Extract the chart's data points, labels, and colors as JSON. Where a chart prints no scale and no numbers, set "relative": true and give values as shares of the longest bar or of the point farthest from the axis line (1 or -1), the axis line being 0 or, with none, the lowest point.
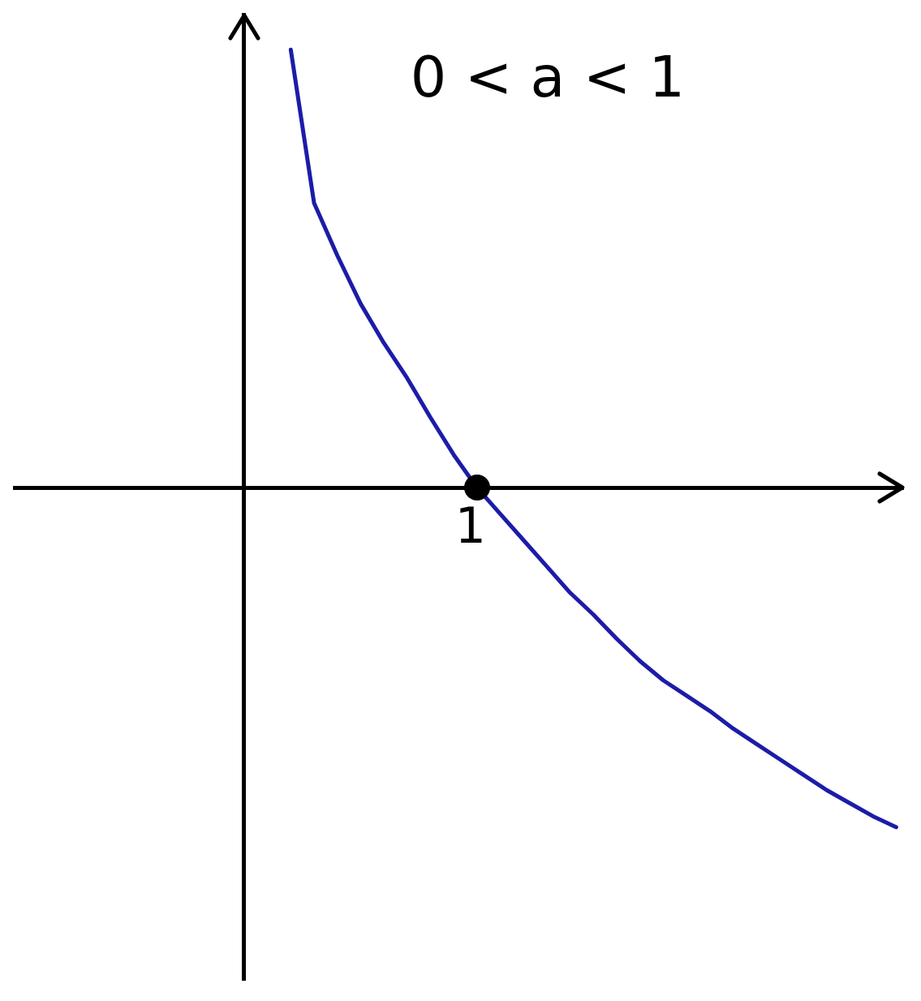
{
  "chart_data": {
    "type": "line",
    "relative": true,
    "grid": false,
    "annotations": [
      "0 < a < 1",
      "1"
    ],
    "categories": [
      null,
      null,
      null,
      null,
      null,
      null,
      null,
      null,
      null,
      null,
      null,
      null,
      null,
      null,
      null,
      null,
      null,
      null,
      null,
      null,
      null,
      null,
      null,
      null,
      null,
      null,
      null,
      null,
      null
    ],
    "series": [
      {
        "type": "line",
        "color": "#1c1ca8",
        "marker": "none",
        "values": [
          null,
          null,
          1.0,
          0.65,
          0.53,
          0.42,
          0.33,
          0.25,
          0.16,
          0.075,
          0,
          -0.06,
          -0.12,
          -0.18,
          -0.24,
          -0.29,
          -0.345,
          -0.396,
          -0.44,
          -0.475,
          -0.51,
          -0.55,
          -0.585,
          -0.62,
          -0.655,
          -0.69,
          -0.72,
          -0.75,
          -0.775
        ]
      }
    ]
  }
}
